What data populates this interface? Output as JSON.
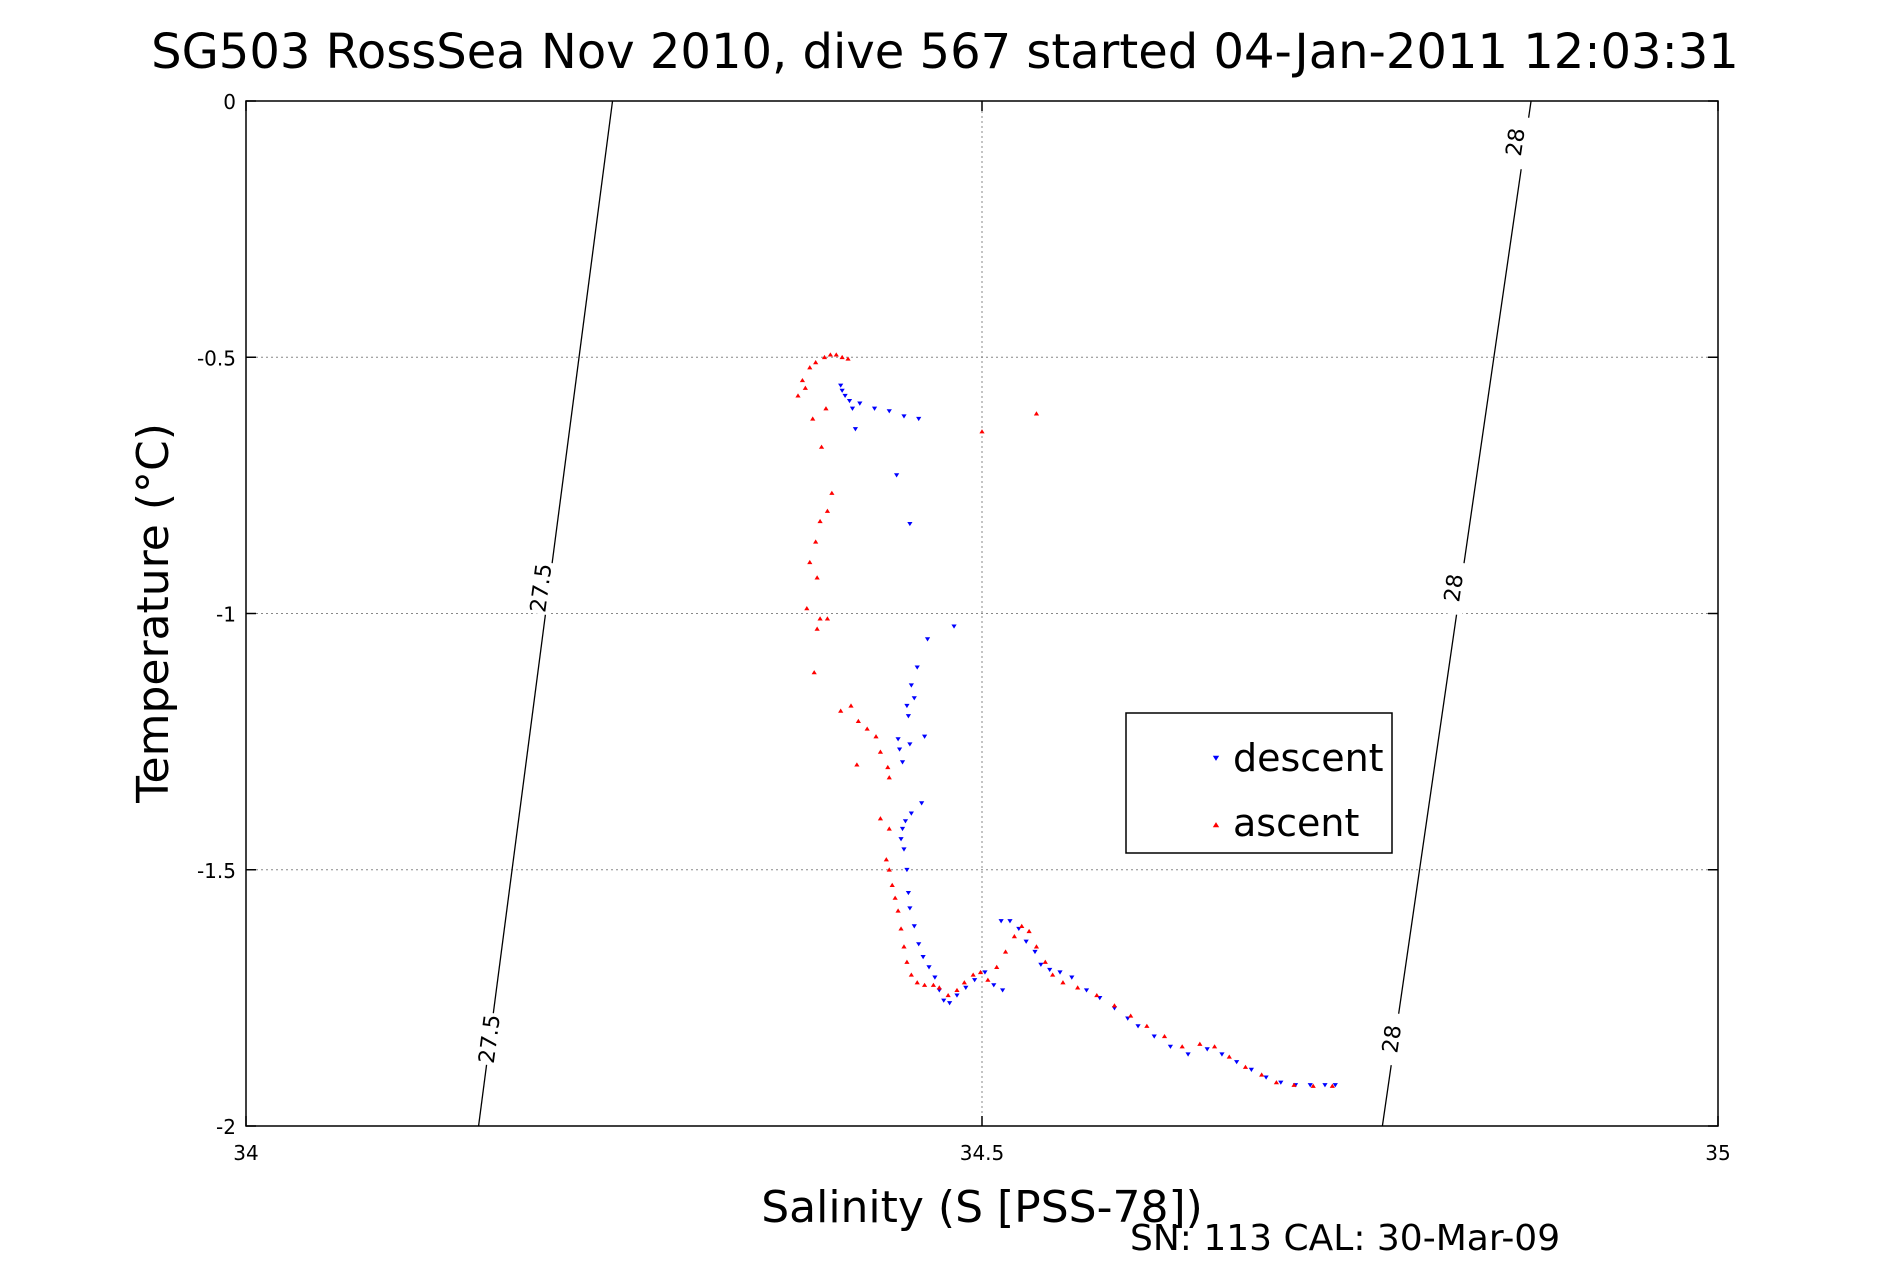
{
  "chart_data": {
    "type": "scatter",
    "title": "SG503 RossSea Nov 2010, dive 567 started 04-Jan-2011 12:03:31",
    "xlabel": "Salinity (S [PSS-78])",
    "ylabel": "Temperature (°C)",
    "xlim": [
      34,
      35
    ],
    "ylim": [
      -2,
      0
    ],
    "x_ticks": [
      "34",
      "34.5",
      "35"
    ],
    "y_ticks": [
      "0",
      "-0.5",
      "-1",
      "-1.5",
      "-2"
    ],
    "grid": true,
    "legend_position": "right",
    "footer": "SN: 113  CAL: 30-Mar-09",
    "isopycnals": [
      {
        "label": "27.5",
        "points": [
          [
            34.158,
            -2.0
          ],
          [
            34.249,
            0.0
          ]
        ],
        "label_positions": [
          [
            34.165,
            -1.83
          ],
          [
            34.2,
            -0.95
          ]
        ]
      },
      {
        "label": "28",
        "points": [
          [
            34.772,
            -2.0
          ],
          [
            34.873,
            0.0
          ]
        ],
        "label_positions": [
          [
            34.778,
            -1.83
          ],
          [
            34.82,
            -0.95
          ],
          [
            34.862,
            -0.08
          ]
        ]
      }
    ],
    "series": [
      {
        "name": "descent",
        "color": "#0000ff",
        "marker": "triangle-down",
        "points": [
          [
            34.404,
            -0.555
          ],
          [
            34.405,
            -0.565
          ],
          [
            34.407,
            -0.575
          ],
          [
            34.41,
            -0.585
          ],
          [
            34.412,
            -0.6
          ],
          [
            34.417,
            -0.59
          ],
          [
            34.427,
            -0.6
          ],
          [
            34.437,
            -0.605
          ],
          [
            34.447,
            -0.615
          ],
          [
            34.457,
            -0.62
          ],
          [
            34.414,
            -0.64
          ],
          [
            34.442,
            -0.73
          ],
          [
            34.451,
            -0.825
          ],
          [
            34.481,
            -1.025
          ],
          [
            34.463,
            -1.05
          ],
          [
            34.456,
            -1.105
          ],
          [
            34.452,
            -1.14
          ],
          [
            34.454,
            -1.165
          ],
          [
            34.449,
            -1.18
          ],
          [
            34.45,
            -1.2
          ],
          [
            34.443,
            -1.245
          ],
          [
            34.451,
            -1.255
          ],
          [
            34.461,
            -1.24
          ],
          [
            34.444,
            -1.265
          ],
          [
            34.446,
            -1.29
          ],
          [
            34.459,
            -1.37
          ],
          [
            34.452,
            -1.39
          ],
          [
            34.448,
            -1.405
          ],
          [
            34.446,
            -1.42
          ],
          [
            34.445,
            -1.44
          ],
          [
            34.447,
            -1.46
          ],
          [
            34.449,
            -1.5
          ],
          [
            34.45,
            -1.545
          ],
          [
            34.451,
            -1.575
          ],
          [
            34.454,
            -1.61
          ],
          [
            34.457,
            -1.645
          ],
          [
            34.46,
            -1.67
          ],
          [
            34.464,
            -1.69
          ],
          [
            34.468,
            -1.71
          ],
          [
            34.471,
            -1.735
          ],
          [
            34.474,
            -1.755
          ],
          [
            34.478,
            -1.76
          ],
          [
            34.483,
            -1.745
          ],
          [
            34.489,
            -1.73
          ],
          [
            34.495,
            -1.715
          ],
          [
            34.502,
            -1.7
          ],
          [
            34.508,
            -1.725
          ],
          [
            34.514,
            -1.735
          ],
          [
            34.513,
            -1.6
          ],
          [
            34.519,
            -1.6
          ],
          [
            34.525,
            -1.615
          ],
          [
            34.53,
            -1.64
          ],
          [
            34.536,
            -1.66
          ],
          [
            34.54,
            -1.685
          ],
          [
            34.546,
            -1.695
          ],
          [
            34.553,
            -1.7
          ],
          [
            34.561,
            -1.71
          ],
          [
            34.571,
            -1.735
          ],
          [
            34.58,
            -1.75
          ],
          [
            34.59,
            -1.77
          ],
          [
            34.599,
            -1.79
          ],
          [
            34.606,
            -1.805
          ],
          [
            34.617,
            -1.825
          ],
          [
            34.628,
            -1.845
          ],
          [
            34.64,
            -1.86
          ],
          [
            34.653,
            -1.85
          ],
          [
            34.663,
            -1.86
          ],
          [
            34.673,
            -1.875
          ],
          [
            34.683,
            -1.89
          ],
          [
            34.693,
            -1.905
          ],
          [
            34.703,
            -1.915
          ],
          [
            34.713,
            -1.92
          ],
          [
            34.723,
            -1.92
          ],
          [
            34.733,
            -1.92
          ],
          [
            34.74,
            -1.92
          ]
        ]
      },
      {
        "name": "ascent",
        "color": "#ff0000",
        "marker": "triangle-up",
        "points": [
          [
            34.387,
            -0.51
          ],
          [
            34.393,
            -0.5
          ],
          [
            34.397,
            -0.495
          ],
          [
            34.401,
            -0.495
          ],
          [
            34.405,
            -0.5
          ],
          [
            34.409,
            -0.503
          ],
          [
            34.383,
            -0.52
          ],
          [
            34.378,
            -0.545
          ],
          [
            34.375,
            -0.575
          ],
          [
            34.38,
            -0.56
          ],
          [
            34.385,
            -0.62
          ],
          [
            34.394,
            -0.6
          ],
          [
            34.5,
            -0.645
          ],
          [
            34.537,
            -0.61
          ],
          [
            34.391,
            -0.675
          ],
          [
            34.398,
            -0.765
          ],
          [
            34.395,
            -0.8
          ],
          [
            34.39,
            -0.82
          ],
          [
            34.387,
            -0.86
          ],
          [
            34.383,
            -0.9
          ],
          [
            34.388,
            -0.93
          ],
          [
            34.381,
            -0.99
          ],
          [
            34.39,
            -1.01
          ],
          [
            34.395,
            -1.01
          ],
          [
            34.388,
            -1.03
          ],
          [
            34.386,
            -1.115
          ],
          [
            34.404,
            -1.19
          ],
          [
            34.411,
            -1.18
          ],
          [
            34.416,
            -1.21
          ],
          [
            34.422,
            -1.225
          ],
          [
            34.428,
            -1.24
          ],
          [
            34.431,
            -1.27
          ],
          [
            34.436,
            -1.3
          ],
          [
            34.415,
            -1.295
          ],
          [
            34.437,
            -1.32
          ],
          [
            34.431,
            -1.4
          ],
          [
            34.437,
            -1.42
          ],
          [
            34.435,
            -1.48
          ],
          [
            34.437,
            -1.5
          ],
          [
            34.439,
            -1.53
          ],
          [
            34.441,
            -1.555
          ],
          [
            34.443,
            -1.58
          ],
          [
            34.445,
            -1.615
          ],
          [
            34.447,
            -1.65
          ],
          [
            34.449,
            -1.68
          ],
          [
            34.452,
            -1.705
          ],
          [
            34.456,
            -1.72
          ],
          [
            34.461,
            -1.725
          ],
          [
            34.467,
            -1.725
          ],
          [
            34.471,
            -1.73
          ],
          [
            34.477,
            -1.745
          ],
          [
            34.483,
            -1.735
          ],
          [
            34.488,
            -1.72
          ],
          [
            34.494,
            -1.705
          ],
          [
            34.499,
            -1.7
          ],
          [
            34.504,
            -1.715
          ],
          [
            34.51,
            -1.69
          ],
          [
            34.516,
            -1.66
          ],
          [
            34.522,
            -1.63
          ],
          [
            34.527,
            -1.61
          ],
          [
            34.532,
            -1.62
          ],
          [
            34.537,
            -1.65
          ],
          [
            34.543,
            -1.68
          ],
          [
            34.548,
            -1.705
          ],
          [
            34.555,
            -1.72
          ],
          [
            34.565,
            -1.73
          ],
          [
            34.578,
            -1.745
          ],
          [
            34.59,
            -1.765
          ],
          [
            34.601,
            -1.785
          ],
          [
            34.612,
            -1.805
          ],
          [
            34.624,
            -1.825
          ],
          [
            34.636,
            -1.845
          ],
          [
            34.648,
            -1.84
          ],
          [
            34.658,
            -1.845
          ],
          [
            34.668,
            -1.865
          ],
          [
            34.679,
            -1.885
          ],
          [
            34.69,
            -1.9
          ],
          [
            34.7,
            -1.915
          ],
          [
            34.712,
            -1.92
          ],
          [
            34.725,
            -1.922
          ],
          [
            34.738,
            -1.922
          ]
        ]
      }
    ]
  }
}
